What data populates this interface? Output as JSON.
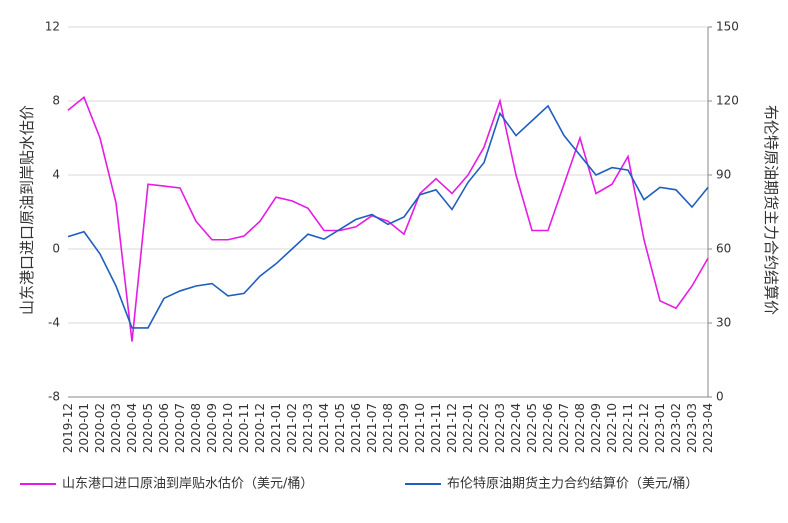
{
  "chart_data": {
    "type": "line",
    "y_label": "山东港口进口原油到岸贴水估价",
    "y2_label": "布伦特原油期货主力合约结算价",
    "categories": [
      "2019-12",
      "2020-01",
      "2020-02",
      "2020-03",
      "2020-04",
      "2020-05",
      "2020-06",
      "2020-07",
      "2020-08",
      "2020-09",
      "2020-10",
      "2020-11",
      "2020-12",
      "2021-01",
      "2021-02",
      "2021-03",
      "2021-04",
      "2021-05",
      "2021-06",
      "2021-07",
      "2021-08",
      "2021-09",
      "2021-10",
      "2021-11",
      "2021-12",
      "2022-01",
      "2022-02",
      "2022-03",
      "2022-04",
      "2022-05",
      "2022-06",
      "2022-07",
      "2022-08",
      "2022-09",
      "2022-10",
      "2022-11",
      "2022-12",
      "2023-01",
      "2023-02",
      "2023-03",
      "2023-04"
    ],
    "series": [
      {
        "name": "山东港口进口原油到岸贴水估价（美元/桶）",
        "color": "#e61be6",
        "axis": "y",
        "values": [
          7.5,
          8.2,
          6.0,
          2.5,
          -5.0,
          3.5,
          3.4,
          3.3,
          1.5,
          0.5,
          0.5,
          0.7,
          1.5,
          2.8,
          2.6,
          2.2,
          1.0,
          1.0,
          1.2,
          1.8,
          1.5,
          0.8,
          3.0,
          3.8,
          3.0,
          4.0,
          5.5,
          8.0,
          4.0,
          1.0,
          1.0,
          3.5,
          6.0,
          3.0,
          3.5,
          5.0,
          0.5,
          -2.8,
          -3.2,
          -2.0,
          -0.5
        ]
      },
      {
        "name": "布伦特原油期货主力合约结算价（美元/桶）",
        "color": "#1f5fbf",
        "axis": "y2",
        "values": [
          65,
          67,
          58,
          45,
          28,
          28,
          40,
          43,
          45,
          46,
          41,
          42,
          49,
          54,
          60,
          66,
          64,
          68,
          72,
          74,
          70,
          73,
          82,
          84,
          76,
          87,
          95,
          115,
          106,
          112,
          118,
          106,
          98,
          90,
          93,
          92,
          80,
          85,
          84,
          77,
          85
        ]
      }
    ],
    "ylim": [
      -8,
      12
    ],
    "yticks": [
      -8,
      -4,
      0,
      4,
      8,
      12
    ],
    "y2lim": [
      0,
      150
    ],
    "y2ticks": [
      0,
      30,
      60,
      90,
      120,
      150
    ],
    "grid": true,
    "legend": "bottom"
  }
}
